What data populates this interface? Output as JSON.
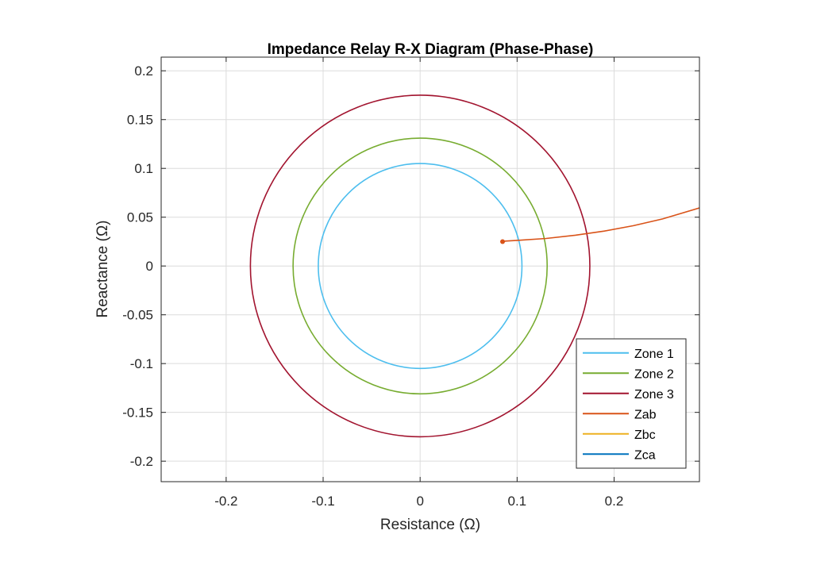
{
  "chart_data": {
    "type": "line",
    "title": "Impedance Relay R-X Diagram (Phase-Phase)",
    "xlabel": "Resistance (Ω)",
    "ylabel": "Reactance (Ω)",
    "xlim": [
      -0.267,
      0.288
    ],
    "ylim": [
      -0.221,
      0.214
    ],
    "xticks": [
      -0.2,
      -0.1,
      0,
      0.1,
      0.2
    ],
    "xtick_labels": [
      "-0.2",
      "-0.1",
      "0",
      "0.1",
      "0.2"
    ],
    "yticks": [
      0.2,
      0.15,
      0.1,
      0.05,
      0,
      -0.05,
      -0.1,
      -0.15,
      -0.2
    ],
    "ytick_labels": [
      "0.2",
      "0.15",
      "0.1",
      "0.05",
      "0",
      "-0.05",
      "-0.1",
      "-0.15",
      "-0.2"
    ],
    "grid": true,
    "legend_position": "bottom-right",
    "series": [
      {
        "name": "Zone 1",
        "kind": "circle",
        "center": [
          0,
          0
        ],
        "radius": 0.105,
        "color": "#4DBEEE"
      },
      {
        "name": "Zone 2",
        "kind": "circle",
        "center": [
          0,
          0
        ],
        "radius": 0.131,
        "color": "#77AC30"
      },
      {
        "name": "Zone 3",
        "kind": "circle",
        "center": [
          0,
          0
        ],
        "radius": 0.175,
        "color": "#A2142F"
      },
      {
        "name": "Zab",
        "kind": "trajectory",
        "color": "#D95319",
        "x": [
          0.085,
          0.086,
          0.088,
          0.1,
          0.13,
          0.16,
          0.19,
          0.22,
          0.25,
          0.288
        ],
        "y": [
          0.025,
          0.025,
          0.0255,
          0.0262,
          0.0282,
          0.0315,
          0.0358,
          0.0413,
          0.0482,
          0.0595
        ]
      },
      {
        "name": "Zbc",
        "kind": "trajectory",
        "color": "#EDB120",
        "x": [],
        "y": []
      },
      {
        "name": "Zca",
        "kind": "trajectory",
        "color": "#0072BD",
        "x": [],
        "y": []
      }
    ]
  }
}
